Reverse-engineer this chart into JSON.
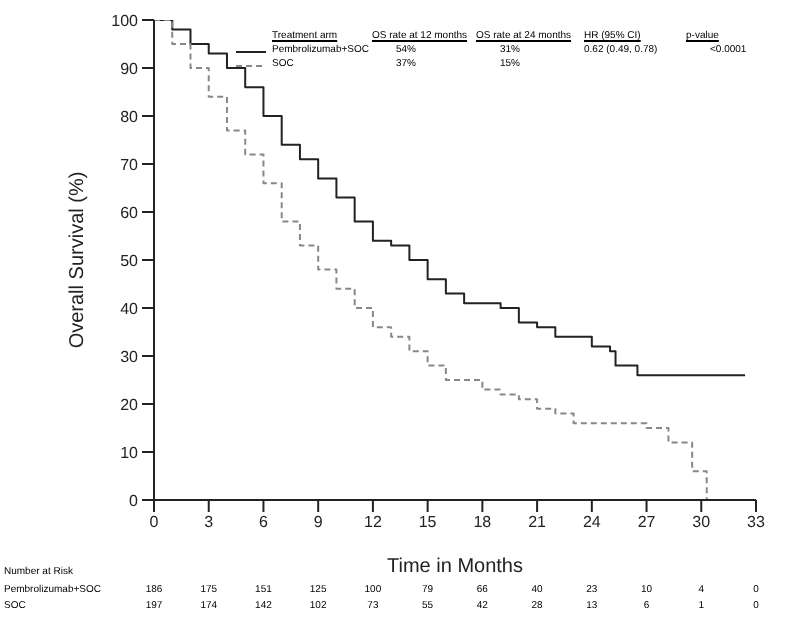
{
  "chart_data": {
    "type": "step",
    "xlabel": "Time in Months",
    "ylabel": "Overall Survival (%)",
    "xlim": [
      0,
      33
    ],
    "ylim": [
      0,
      100
    ],
    "xticks": [
      0,
      3,
      6,
      9,
      12,
      15,
      18,
      21,
      24,
      27,
      30,
      33
    ],
    "yticks": [
      0,
      10,
      20,
      30,
      40,
      50,
      60,
      70,
      80,
      90,
      100
    ],
    "legend": "top",
    "marker": "none",
    "series": [
      {
        "name": "Pembrolizumab+SOC",
        "color": "#222222",
        "line_style": "solid",
        "x": [
          0,
          1,
          2,
          3,
          4,
          5,
          6,
          7,
          8,
          9,
          10,
          11,
          12,
          13,
          14,
          15,
          16,
          17,
          18,
          19,
          20,
          21,
          22,
          23,
          24,
          25,
          25.3,
          26.5,
          32.4
        ],
        "values": [
          100,
          98,
          95,
          93,
          90,
          86,
          80,
          74,
          71,
          67,
          63,
          58,
          54,
          53,
          50,
          46,
          43,
          41,
          41,
          40,
          37,
          36,
          34,
          34,
          32,
          31,
          28,
          26,
          26
        ]
      },
      {
        "name": "SOC",
        "color": "#888888",
        "line_style": "dashed",
        "x": [
          0,
          1,
          2,
          3,
          4,
          5,
          6,
          7,
          8,
          9,
          10,
          11,
          12,
          13,
          14,
          15,
          16,
          17,
          18,
          19,
          20,
          21,
          22,
          23,
          24,
          27,
          28,
          28.2,
          29.3,
          29.5,
          30.3,
          30.3
        ],
        "values": [
          100,
          95,
          90,
          84,
          77,
          72,
          66,
          58,
          53,
          48,
          44,
          40,
          36,
          34,
          31,
          28,
          25,
          25,
          23,
          22,
          21,
          19,
          18,
          16,
          16,
          15,
          15,
          12,
          12,
          6,
          6,
          0
        ]
      }
    ],
    "annotations": [
      "Treatment arm",
      "OS rate at 12 months",
      "OS rate at 24 months",
      "HR (95% CI)",
      "p-value",
      "54%",
      "31%",
      "0.62 (0.49, 0.78)",
      "<0.0001",
      "37%",
      "15%",
      "Number at Risk",
      "186",
      "175",
      "151",
      "125",
      "100",
      "79",
      "66",
      "40",
      "23",
      "10",
      "4",
      "0",
      "197",
      "174",
      "142",
      "102",
      "73",
      "55",
      "42",
      "28",
      "13",
      "6",
      "1",
      "0"
    ]
  }
}
